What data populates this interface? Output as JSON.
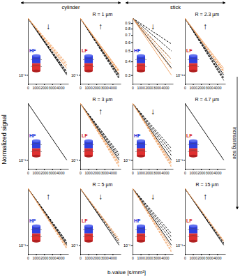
{
  "figure": {
    "y_label": "Normalized signal",
    "x_label": "b-value [s/mm²]",
    "column_groups": [
      "cylinder",
      "stick"
    ],
    "side_label": "increasing size"
  },
  "chart_data": [
    {
      "type": "line",
      "log": "y",
      "xlim": [
        0,
        5000
      ],
      "xticks": [
        0,
        1000,
        2000,
        3000,
        4000
      ],
      "ylim": [
        0.07,
        1
      ],
      "yticks": [
        {
          "value": 0.1,
          "label": "10⁻¹"
        }
      ],
      "annotations": [
        "HF",
        "↓"
      ],
      "x": [
        0,
        4800
      ],
      "series": [
        {
          "color": "#000000",
          "line_style": "solid",
          "values": [
            1,
            0.1
          ]
        },
        {
          "color": "#000000",
          "line_style": "dashed",
          "values": [
            1,
            0.105
          ]
        },
        {
          "color": "#000000",
          "line_style": "dashed",
          "values": [
            1,
            0.11
          ]
        },
        {
          "color": "#000000",
          "line_style": "dashed",
          "values": [
            1,
            0.115
          ]
        },
        {
          "color": "#f0a060",
          "line_style": "solid",
          "values": [
            1,
            0.13
          ]
        },
        {
          "color": "#f0a060",
          "line_style": "dashed",
          "values": [
            1,
            0.14
          ]
        },
        {
          "color": "#f0a060",
          "line_style": "dashed",
          "values": [
            1,
            0.15
          ]
        },
        {
          "color": "#f0a060",
          "line_style": "dashed",
          "values": [
            1,
            0.16
          ]
        }
      ]
    },
    {
      "type": "line",
      "title": "R = 1 µm",
      "log": "y",
      "xlim": [
        0,
        5000
      ],
      "xticks": [
        0,
        1000,
        2000,
        3000,
        4000
      ],
      "ylim": [
        0.07,
        1
      ],
      "yticks": [
        {
          "value": 0.1,
          "label": "10⁻¹"
        }
      ],
      "annotations": [
        "LF",
        "↑"
      ],
      "x": [
        0,
        4800
      ],
      "series": [
        {
          "color": "#000000",
          "line_style": "solid",
          "values": [
            1,
            0.1
          ]
        },
        {
          "color": "#000000",
          "line_style": "dashed",
          "values": [
            1,
            0.095
          ]
        },
        {
          "color": "#000000",
          "line_style": "dashed",
          "values": [
            1,
            0.09
          ]
        },
        {
          "color": "#000000",
          "line_style": "dashed",
          "values": [
            1,
            0.085
          ]
        },
        {
          "color": "#f0a060",
          "line_style": "solid",
          "values": [
            1,
            0.12
          ]
        },
        {
          "color": "#f0a060",
          "line_style": "dashed",
          "values": [
            1,
            0.115
          ]
        },
        {
          "color": "#f0a060",
          "line_style": "dashed",
          "values": [
            1,
            0.11
          ]
        },
        {
          "color": "#f0a060",
          "line_style": "dashed",
          "values": [
            1,
            0.105
          ]
        }
      ]
    },
    {
      "type": "line",
      "log": "y",
      "xlim": [
        0,
        5000
      ],
      "xticks": [
        0,
        1000,
        2000,
        3000,
        4000
      ],
      "ylim": [
        0.25,
        1
      ],
      "yticks": [
        0.3,
        0.4,
        0.5,
        0.6,
        0.7,
        0.8,
        0.9
      ],
      "annotations": [
        "HF",
        "↓"
      ],
      "x": [
        0,
        4800
      ],
      "series": [
        {
          "color": "#000000",
          "line_style": "solid",
          "values": [
            1,
            0.35
          ]
        },
        {
          "color": "#000000",
          "line_style": "dashed",
          "values": [
            1,
            0.42
          ]
        },
        {
          "color": "#000000",
          "line_style": "dashed",
          "values": [
            1,
            0.5
          ]
        },
        {
          "color": "#000000",
          "line_style": "dashed",
          "values": [
            1,
            0.58
          ]
        },
        {
          "color": "#f0a060",
          "line_style": "solid",
          "values": [
            1,
            0.3
          ]
        },
        {
          "color": "#f0a060",
          "line_style": "dashed",
          "values": [
            1,
            0.34
          ]
        },
        {
          "color": "#f0a060",
          "line_style": "dashed",
          "values": [
            1,
            0.38
          ]
        },
        {
          "color": "#f0a060",
          "line_style": "dashed",
          "values": [
            1,
            0.42
          ]
        }
      ]
    },
    {
      "type": "line",
      "title": "R = 2.3 µm",
      "log": "y",
      "xlim": [
        0,
        5000
      ],
      "xticks": [
        0,
        1000,
        2000,
        3000,
        4000
      ],
      "ylim": [
        0.07,
        1
      ],
      "yticks": [
        {
          "value": 0.1,
          "label": "10⁻¹"
        }
      ],
      "annotations": [
        "LF",
        "↑"
      ],
      "x": [
        0,
        4800
      ],
      "series": [
        {
          "color": "#000000",
          "line_style": "solid",
          "values": [
            1,
            0.1
          ]
        },
        {
          "color": "#000000",
          "line_style": "dashed",
          "values": [
            1,
            0.09
          ]
        },
        {
          "color": "#000000",
          "line_style": "dashed",
          "values": [
            1,
            0.085
          ]
        },
        {
          "color": "#000000",
          "line_style": "dashed",
          "values": [
            1,
            0.08
          ]
        },
        {
          "color": "#f0a060",
          "line_style": "solid",
          "values": [
            1,
            0.13
          ]
        },
        {
          "color": "#f0a060",
          "line_style": "dashed",
          "values": [
            1,
            0.12
          ]
        },
        {
          "color": "#f0a060",
          "line_style": "dashed",
          "values": [
            1,
            0.115
          ]
        },
        {
          "color": "#f0a060",
          "line_style": "dashed",
          "values": [
            1,
            0.11
          ]
        }
      ]
    },
    {
      "type": "line",
      "log": "y",
      "xlim": [
        0,
        5000
      ],
      "xticks": [
        0,
        1000,
        2000,
        3000,
        4000
      ],
      "ylim": [
        0.07,
        1
      ],
      "yticks": [
        {
          "value": 0.1,
          "label": "10⁻¹"
        }
      ],
      "annotations": [
        "HF"
      ],
      "x": [
        0,
        4800
      ],
      "series": [
        {
          "color": "#000000",
          "line_style": "solid",
          "values": [
            1,
            0.1
          ]
        }
      ]
    },
    {
      "type": "line",
      "title": "R = 3 µm",
      "log": "y",
      "xlim": [
        0,
        5000
      ],
      "xticks": [
        0,
        1000,
        2000,
        3000,
        4000
      ],
      "ylim": [
        0.07,
        1
      ],
      "yticks": [
        {
          "value": 0.1,
          "label": "10⁻¹"
        }
      ],
      "annotations": [
        "LF",
        "↑"
      ],
      "x": [
        0,
        4800
      ],
      "series": [
        {
          "color": "#000000",
          "line_style": "solid",
          "values": [
            1,
            0.1
          ]
        },
        {
          "color": "#000000",
          "line_style": "dashed",
          "values": [
            1,
            0.11
          ]
        },
        {
          "color": "#000000",
          "line_style": "dashed",
          "values": [
            1,
            0.12
          ]
        },
        {
          "color": "#000000",
          "line_style": "dashed",
          "values": [
            1,
            0.13
          ]
        },
        {
          "color": "#f0a060",
          "line_style": "solid",
          "values": [
            1,
            0.09
          ]
        },
        {
          "color": "#f0a060",
          "line_style": "dashed",
          "values": [
            1,
            0.085
          ]
        },
        {
          "color": "#f0a060",
          "line_style": "dashed",
          "values": [
            1,
            0.08
          ]
        },
        {
          "color": "#f0a060",
          "line_style": "dashed",
          "values": [
            1,
            0.075
          ]
        }
      ]
    },
    {
      "type": "line",
      "log": "y",
      "xlim": [
        0,
        5000
      ],
      "xticks": [
        0,
        1000,
        2000,
        3000,
        4000
      ],
      "ylim": [
        0.07,
        1
      ],
      "yticks": [
        {
          "value": 0.1,
          "label": "10⁻¹"
        }
      ],
      "annotations": [
        "HF",
        "↓"
      ],
      "x": [
        0,
        4800
      ],
      "series": [
        {
          "color": "#000000",
          "line_style": "solid",
          "values": [
            1,
            0.1
          ]
        },
        {
          "color": "#000000",
          "line_style": "dashed",
          "values": [
            1,
            0.12
          ]
        },
        {
          "color": "#000000",
          "line_style": "dashed",
          "values": [
            1,
            0.14
          ]
        },
        {
          "color": "#000000",
          "line_style": "dashed",
          "values": [
            1,
            0.16
          ]
        },
        {
          "color": "#f0a060",
          "line_style": "solid",
          "values": [
            1,
            0.09
          ]
        },
        {
          "color": "#f0a060",
          "line_style": "dashed",
          "values": [
            1,
            0.085
          ]
        },
        {
          "color": "#f0a060",
          "line_style": "dashed",
          "values": [
            1,
            0.08
          ]
        },
        {
          "color": "#f0a060",
          "line_style": "dashed",
          "values": [
            1,
            0.075
          ]
        }
      ]
    },
    {
      "type": "line",
      "title": "R = 4.7 µm",
      "log": "y",
      "xlim": [
        0,
        5000
      ],
      "xticks": [
        0,
        1000,
        2000,
        3000,
        4000
      ],
      "ylim": [
        0.07,
        1
      ],
      "yticks": [
        {
          "value": 0.1,
          "label": "10⁻¹"
        }
      ],
      "annotations": [
        "LF"
      ],
      "x": [
        0,
        4800
      ],
      "series": [
        {
          "color": "#000000",
          "line_style": "solid",
          "values": [
            1,
            0.1
          ]
        }
      ]
    },
    {
      "type": "line",
      "log": "y",
      "xlim": [
        0,
        5000
      ],
      "xticks": [
        0,
        1000,
        2000,
        3000,
        4000
      ],
      "ylim": [
        0.07,
        1
      ],
      "yticks": [
        {
          "value": 0.1,
          "label": "10⁻¹"
        }
      ],
      "annotations": [
        "HF",
        "↑"
      ],
      "x": [
        0,
        4800
      ],
      "series": [
        {
          "color": "#000000",
          "line_style": "solid",
          "values": [
            1,
            0.1
          ]
        },
        {
          "color": "#000000",
          "line_style": "dashed",
          "values": [
            1,
            0.105
          ]
        },
        {
          "color": "#000000",
          "line_style": "dashed",
          "values": [
            1,
            0.11
          ]
        },
        {
          "color": "#000000",
          "line_style": "dashed",
          "values": [
            1,
            0.115
          ]
        },
        {
          "color": "#f0a060",
          "line_style": "solid",
          "values": [
            1,
            0.095
          ]
        },
        {
          "color": "#f0a060",
          "line_style": "dashed",
          "values": [
            1,
            0.09
          ]
        },
        {
          "color": "#f0a060",
          "line_style": "dashed",
          "values": [
            1,
            0.085
          ]
        }
      ]
    },
    {
      "type": "line",
      "title": "R = 5 µm",
      "log": "y",
      "xlim": [
        0,
        5000
      ],
      "xticks": [
        0,
        1000,
        2000,
        3000,
        4000
      ],
      "ylim": [
        0.07,
        1
      ],
      "yticks": [
        {
          "value": 0.1,
          "label": "10⁻¹"
        }
      ],
      "annotations": [
        "LF",
        "↓"
      ],
      "x": [
        0,
        4800
      ],
      "series": [
        {
          "color": "#000000",
          "line_style": "solid",
          "values": [
            1,
            0.1
          ]
        },
        {
          "color": "#000000",
          "line_style": "dashed",
          "values": [
            1,
            0.11
          ]
        },
        {
          "color": "#000000",
          "line_style": "dashed",
          "values": [
            1,
            0.12
          ]
        },
        {
          "color": "#f0a060",
          "line_style": "solid",
          "values": [
            1,
            0.12
          ]
        },
        {
          "color": "#f0a060",
          "line_style": "dashed",
          "values": [
            1,
            0.13
          ]
        }
      ]
    },
    {
      "type": "line",
      "log": "y",
      "xlim": [
        0,
        5000
      ],
      "xticks": [
        0,
        1000,
        2000,
        3000,
        4000
      ],
      "ylim": [
        0.07,
        1
      ],
      "yticks": [
        {
          "value": 0.1,
          "label": "10⁻¹"
        }
      ],
      "annotations": [
        "HF",
        "↓"
      ],
      "x": [
        0,
        4800
      ],
      "series": [
        {
          "color": "#000000",
          "line_style": "solid",
          "values": [
            1,
            0.1
          ]
        },
        {
          "color": "#000000",
          "line_style": "dashed",
          "values": [
            1,
            0.12
          ]
        },
        {
          "color": "#000000",
          "line_style": "dashed",
          "values": [
            1,
            0.14
          ]
        },
        {
          "color": "#000000",
          "line_style": "dashed",
          "values": [
            1,
            0.16
          ]
        },
        {
          "color": "#f0a060",
          "line_style": "solid",
          "values": [
            1,
            0.09
          ]
        },
        {
          "color": "#f0a060",
          "line_style": "dashed",
          "values": [
            1,
            0.08
          ]
        },
        {
          "color": "#f0a060",
          "line_style": "dashed",
          "values": [
            1,
            0.075
          ]
        }
      ]
    },
    {
      "type": "line",
      "title": "R = 15 µm",
      "log": "y",
      "xlim": [
        0,
        5000
      ],
      "xticks": [
        0,
        1000,
        2000,
        3000,
        4000
      ],
      "ylim": [
        0.07,
        1
      ],
      "yticks": [
        {
          "value": 0.1,
          "label": "10⁻¹"
        }
      ],
      "annotations": [
        "LF",
        "↑"
      ],
      "x": [
        0,
        4800
      ],
      "series": [
        {
          "color": "#000000",
          "line_style": "solid",
          "values": [
            1,
            0.1
          ]
        },
        {
          "color": "#000000",
          "line_style": "dashed",
          "values": [
            1,
            0.105
          ]
        },
        {
          "color": "#000000",
          "line_style": "dashed",
          "values": [
            1,
            0.11
          ]
        },
        {
          "color": "#f0a060",
          "line_style": "solid",
          "values": [
            1,
            0.115
          ]
        },
        {
          "color": "#f0a060",
          "line_style": "dashed",
          "values": [
            1,
            0.12
          ]
        }
      ]
    }
  ]
}
